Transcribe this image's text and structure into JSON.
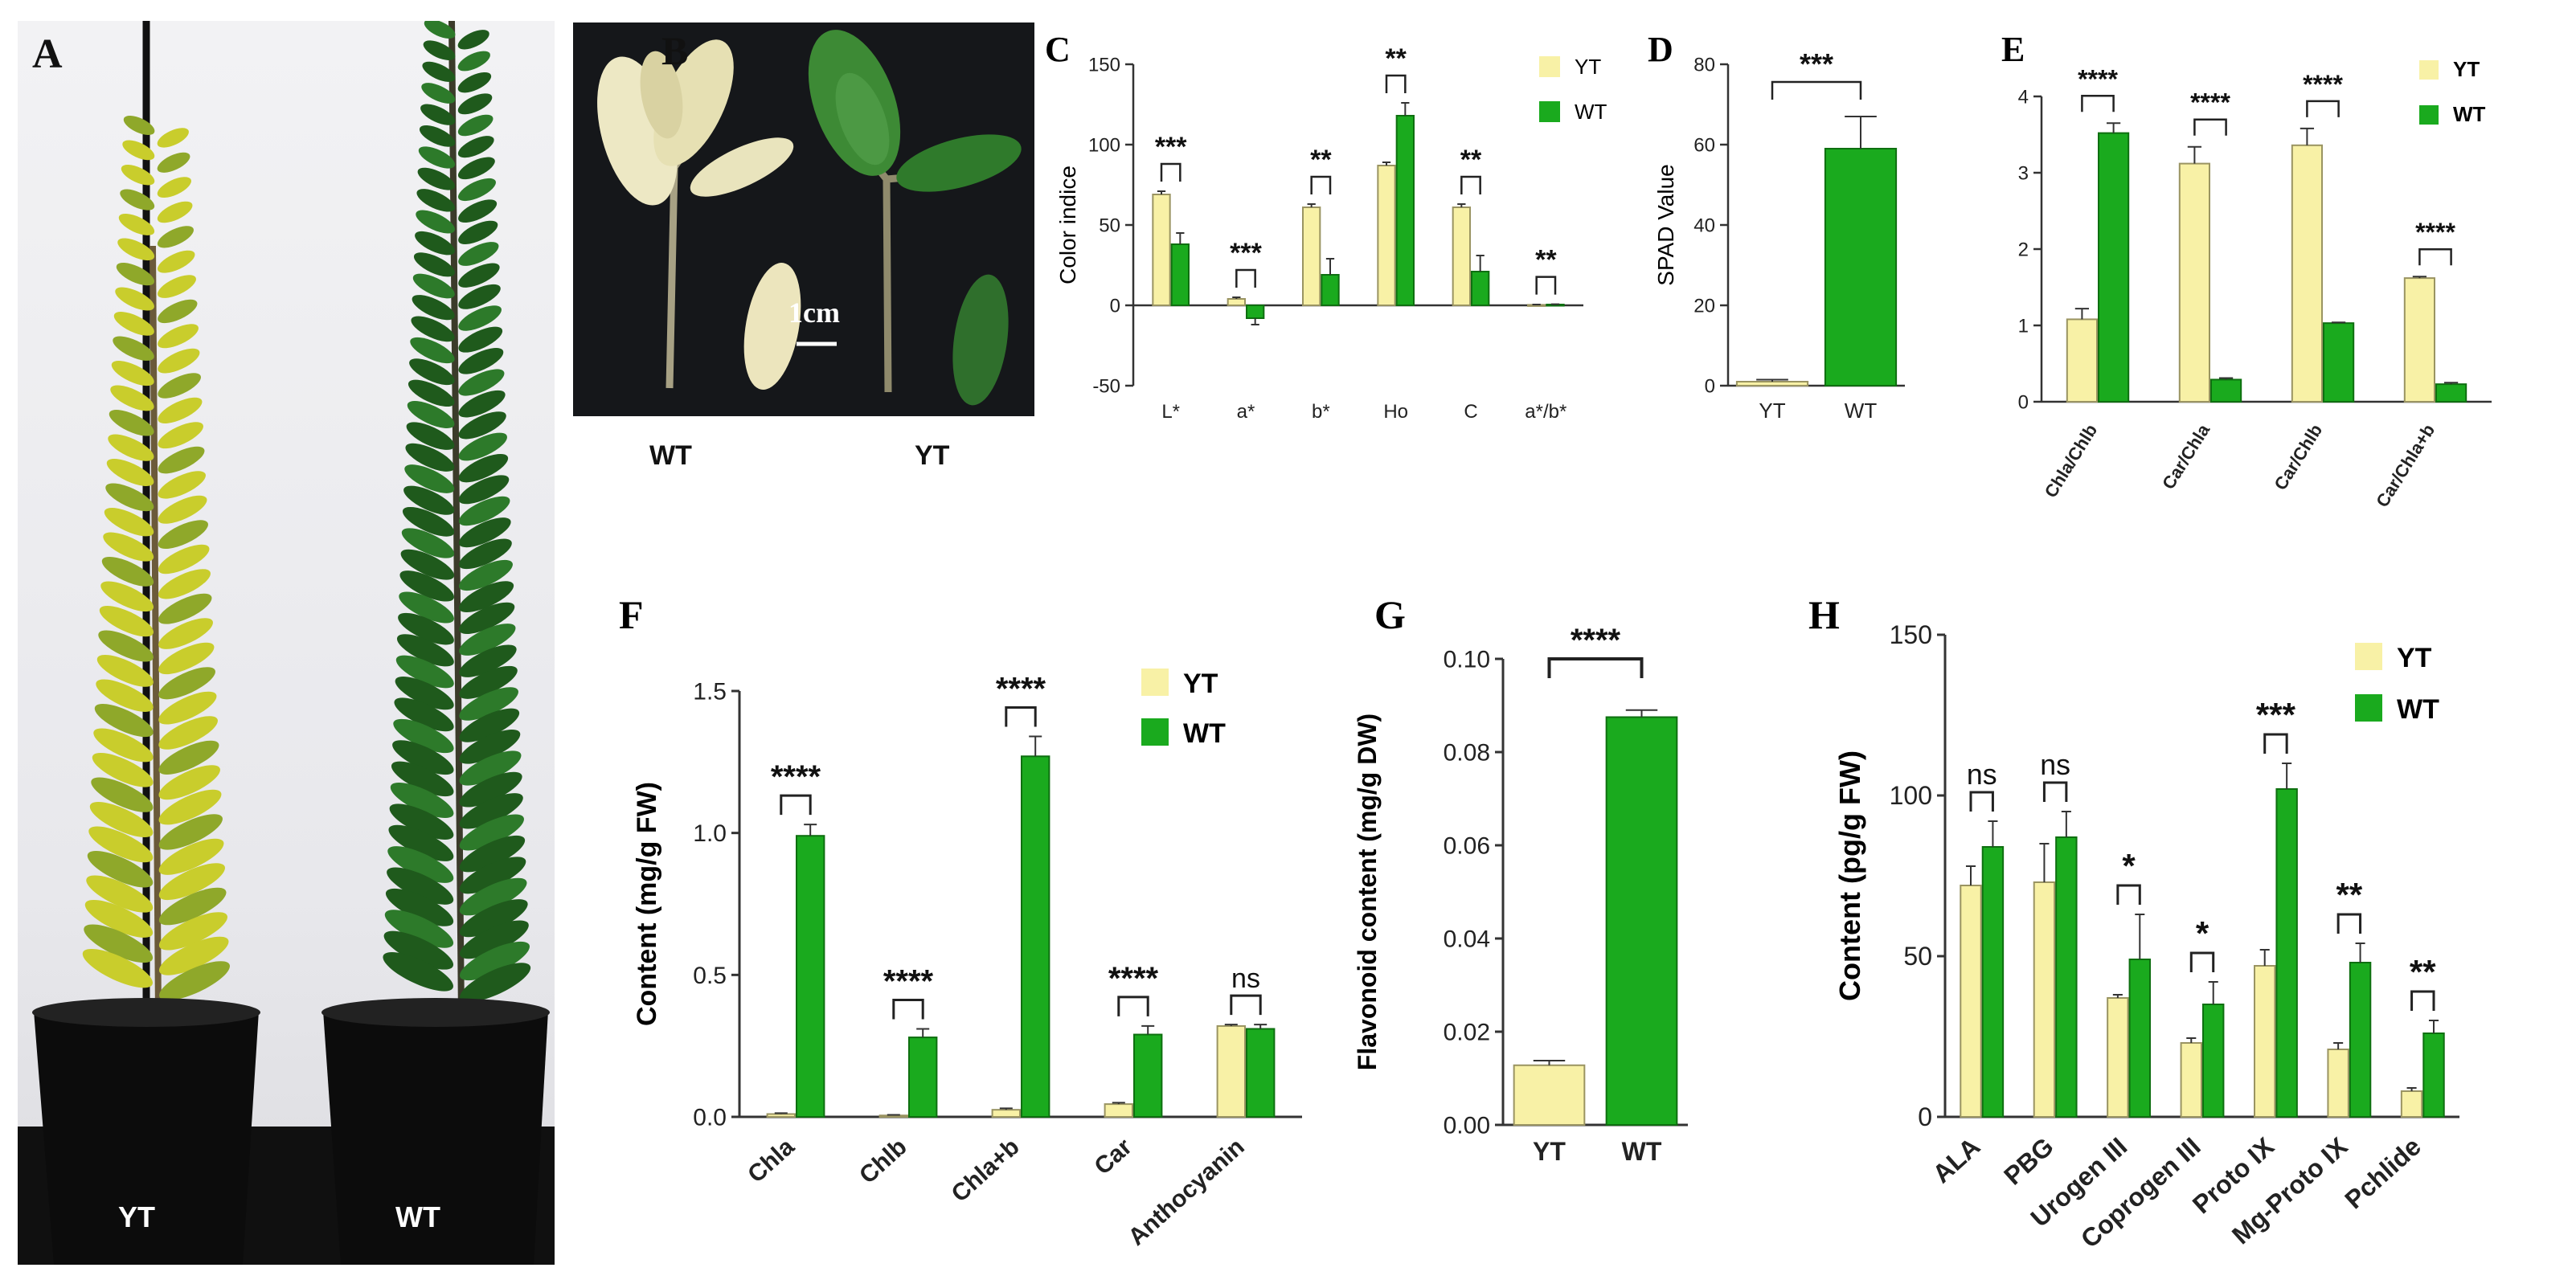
{
  "colors": {
    "yt": "#F8F1A6",
    "yt_stroke": "#9A9462",
    "wt": "#1AAA1E",
    "wt_stroke": "#0E6F10",
    "axis": "#333333"
  },
  "panel_a": {
    "letter": "A",
    "left_pot_label": "YT",
    "right_pot_label": "WT"
  },
  "panel_b": {
    "letter": "B",
    "scale_bar": "1cm",
    "left_caption": "WT",
    "right_caption": "YT"
  },
  "chart_data": [
    {
      "id": "C",
      "letter": "C",
      "type": "bar",
      "title": "",
      "xlabel": "",
      "ylabel": "Color indice",
      "ylim": [
        -50,
        150
      ],
      "yticks": [
        "-50",
        "0",
        "50",
        "100",
        "150"
      ],
      "categories": [
        "L*",
        "a*",
        "b*",
        "Ho",
        "C",
        "a*/b*"
      ],
      "series": [
        {
          "name": "YT",
          "values": [
            69,
            4,
            61,
            87,
            61,
            0.3
          ],
          "errors": [
            2,
            1,
            2,
            2,
            2,
            0.2
          ]
        },
        {
          "name": "WT",
          "values": [
            38,
            -8,
            19,
            118,
            21,
            0.5
          ],
          "errors": [
            7,
            4,
            10,
            8,
            10,
            0.2
          ]
        }
      ],
      "significance": [
        "***",
        "***",
        "**",
        "**",
        "**",
        "**"
      ],
      "legend": [
        "YT",
        "WT"
      ],
      "legend_position": "top-right"
    },
    {
      "id": "D",
      "letter": "D",
      "type": "bar",
      "title": "",
      "xlabel": "",
      "ylabel": "SPAD Value",
      "ylim": [
        0,
        80
      ],
      "yticks": [
        "0",
        "20",
        "40",
        "60",
        "80"
      ],
      "categories": [
        "YT",
        "WT"
      ],
      "values": [
        1,
        59
      ],
      "errors": [
        0.5,
        8
      ],
      "significance": [
        "***"
      ]
    },
    {
      "id": "E",
      "letter": "E",
      "type": "bar",
      "title": "",
      "xlabel": "",
      "ylabel": "",
      "ylim": [
        0,
        4
      ],
      "yticks": [
        "0",
        "1",
        "2",
        "3",
        "4"
      ],
      "categories": [
        "Chla/Chlb",
        "Car/Chla",
        "Car/Chlb",
        "Car/Chla+b"
      ],
      "series": [
        {
          "name": "YT",
          "values": [
            1.08,
            3.12,
            3.36,
            1.62
          ],
          "errors": [
            0.14,
            0.22,
            0.22,
            0.02
          ]
        },
        {
          "name": "WT",
          "values": [
            3.52,
            0.29,
            1.03,
            0.23
          ],
          "errors": [
            0.13,
            0.02,
            0.01,
            0.02
          ]
        }
      ],
      "significance": [
        "****",
        "****",
        "****",
        "****"
      ],
      "legend": [
        "YT",
        "WT"
      ],
      "legend_position": "top-right"
    },
    {
      "id": "F",
      "letter": "F",
      "type": "bar",
      "title": "",
      "xlabel": "",
      "ylabel": "Content (mg/g FW)",
      "ylim": [
        0,
        1.5
      ],
      "yticks": [
        "0.0",
        "0.5",
        "1.0",
        "1.5"
      ],
      "categories": [
        "Chla",
        "Chlb",
        "Chla+b",
        "Car",
        "Anthocyanin"
      ],
      "series": [
        {
          "name": "YT",
          "values": [
            0.01,
            0.005,
            0.025,
            0.045,
            0.32
          ],
          "errors": [
            0.003,
            0.002,
            0.005,
            0.005,
            0.005
          ]
        },
        {
          "name": "WT",
          "values": [
            0.99,
            0.28,
            1.27,
            0.29,
            0.31
          ],
          "errors": [
            0.04,
            0.03,
            0.07,
            0.03,
            0.015
          ]
        }
      ],
      "significance": [
        "****",
        "****",
        "****",
        "****",
        "ns"
      ],
      "legend": [
        "YT",
        "WT"
      ],
      "legend_position": "top-right"
    },
    {
      "id": "G",
      "letter": "G",
      "type": "bar",
      "title": "",
      "xlabel": "",
      "ylabel": "Flavonoid content (mg/g DW)",
      "ylim": [
        0,
        0.1
      ],
      "yticks": [
        "0.00",
        "0.02",
        "0.04",
        "0.06",
        "0.08",
        "0.10"
      ],
      "categories": [
        "YT",
        "WT"
      ],
      "values": [
        0.0128,
        0.0875
      ],
      "errors": [
        0.001,
        0.0015
      ],
      "significance": [
        "****"
      ]
    },
    {
      "id": "H",
      "letter": "H",
      "type": "bar",
      "title": "",
      "xlabel": "",
      "ylabel": "Content (pg/g FW)",
      "ylim": [
        0,
        150
      ],
      "yticks": [
        "0",
        "50",
        "100",
        "150"
      ],
      "categories": [
        "ALA",
        "PBG",
        "Urogen III",
        "Coprogen III",
        "Proto IX",
        "Mg-Proto IX",
        "Pchlide"
      ],
      "series": [
        {
          "name": "YT",
          "values": [
            72,
            73,
            37,
            23,
            47,
            21,
            8
          ],
          "errors": [
            6,
            12,
            1,
            1.5,
            5,
            2,
            1
          ]
        },
        {
          "name": "WT",
          "values": [
            84,
            87,
            49,
            35,
            102,
            48,
            26
          ],
          "errors": [
            8,
            8,
            14,
            7,
            8,
            6,
            4
          ]
        }
      ],
      "significance": [
        "ns",
        "ns",
        "*",
        "*",
        "***",
        "**",
        "**"
      ],
      "legend": [
        "YT",
        "WT"
      ],
      "legend_position": "top-right"
    }
  ]
}
